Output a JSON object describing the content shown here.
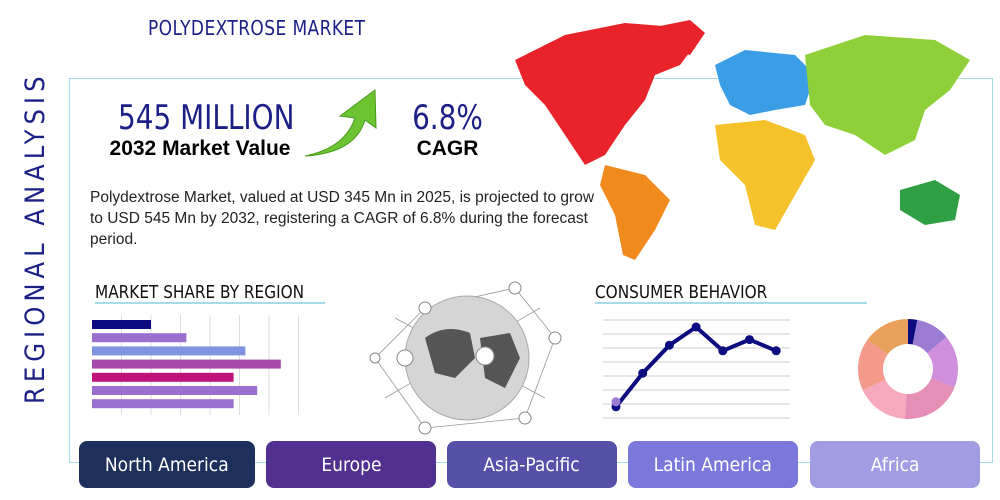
{
  "title": "POLYDEXTROSE MARKET",
  "side_label": "REGIONAL ANALYSIS",
  "kpi": {
    "value": "545 MILLION",
    "value_label": "2032 Market Value",
    "cagr": "6.8%",
    "cagr_label": "CAGR"
  },
  "description": "Polydextrose Market, valued at USD 345 Mn in 2025, is projected to grow to USD 545 Mn by 2032, registering a CAGR of 6.8% during the forecast period.",
  "icons": {
    "growth": "green-arrow-up-icon",
    "map": "world-map",
    "globe": "network-globe-icon"
  },
  "map_colors": {
    "north_america": "#e8232a",
    "south_america": "#f08a1c",
    "europe": "#3a9ee6",
    "asia": "#8fd03a",
    "africa": "#f5c22c",
    "oceania": "#2ea043"
  },
  "regions": [
    {
      "label": "North America",
      "color": "#1d2f5a"
    },
    {
      "label": "Europe",
      "color": "#51308f"
    },
    {
      "label": "Asia-Pacific",
      "color": "#5550a8"
    },
    {
      "label": "Latin America",
      "color": "#7b78dc"
    },
    {
      "label": "Africa",
      "color": "#a29de2"
    }
  ],
  "chart_data": [
    {
      "type": "bar",
      "title": "MARKET SHARE BY REGION",
      "orientation": "horizontal",
      "grid": true,
      "xlim": [
        0,
        7
      ],
      "values": [
        2,
        3.2,
        5.2,
        6.4,
        4.8,
        5.6,
        4.8
      ],
      "colors": [
        "#0c0c80",
        "#9b6fd0",
        "#7f93e0",
        "#a84aaa",
        "#c0137a",
        "#9a6fd0",
        "#9a6fd0"
      ]
    },
    {
      "type": "line",
      "title": "CONSUMER BEHAVIOR",
      "grid": true,
      "ylim": [
        0,
        7
      ],
      "values": [
        0.8,
        3.2,
        5.2,
        6.5,
        4.8,
        5.6,
        4.8
      ],
      "color": "#0c0c80",
      "first_point_highlight": "#9b7bd4"
    },
    {
      "type": "pie",
      "donut": true,
      "values": [
        3,
        11,
        17,
        20,
        17,
        17,
        15
      ],
      "colors": [
        "#0c0c80",
        "#9b7bd4",
        "#d08fdc",
        "#e58fb7",
        "#f6a8bd",
        "#f39a8a",
        "#e8a05a"
      ]
    }
  ]
}
